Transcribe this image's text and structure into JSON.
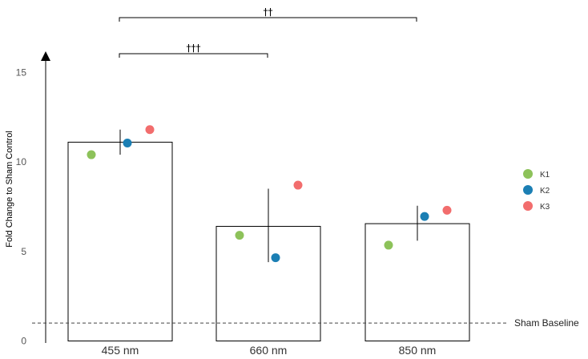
{
  "chart_data": {
    "type": "bar",
    "categories": [
      "455 nm",
      "660 nm",
      "850 nm"
    ],
    "values": [
      11.1,
      6.4,
      6.55
    ],
    "error": [
      [
        10.4,
        11.8
      ],
      [
        4.4,
        8.5
      ],
      [
        5.6,
        7.55
      ]
    ],
    "ylabel": "Fold Change to Sham Control",
    "ylim": [
      0,
      16
    ],
    "yticks": [
      0,
      5,
      10,
      15
    ],
    "series": [
      {
        "name": "K1",
        "color": "#8dc25a",
        "values": [
          10.4,
          5.9,
          5.35
        ]
      },
      {
        "name": "K2",
        "color": "#1b7fb4",
        "values": [
          11.05,
          4.65,
          6.95
        ]
      },
      {
        "name": "K3",
        "color": "#f26d6d",
        "values": [
          11.8,
          8.7,
          7.3
        ]
      }
    ],
    "reference_line": {
      "value": 1,
      "label": "Sham Baseline"
    },
    "significance": [
      {
        "from": "455 nm",
        "to": "850 nm",
        "label": "††"
      },
      {
        "from": "455 nm",
        "to": "660 nm",
        "label": "†††"
      }
    ],
    "legend_position": "right",
    "grid": false
  }
}
